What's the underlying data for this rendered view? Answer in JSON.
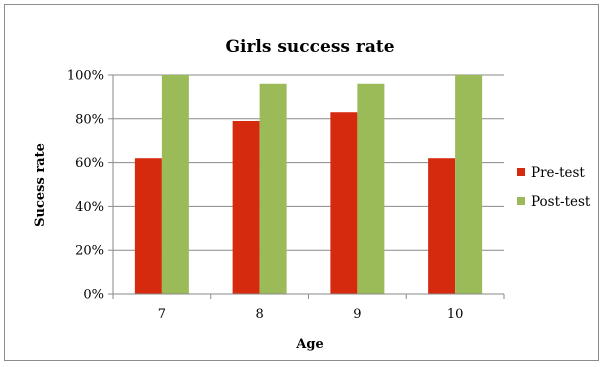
{
  "chart_data": {
    "type": "bar",
    "title": "Girls success rate",
    "xlabel": "Age",
    "ylabel": "Sucess rate",
    "categories": [
      "7",
      "8",
      "9",
      "10"
    ],
    "ylim": [
      0,
      100
    ],
    "yticks": [
      "0%",
      "20%",
      "40%",
      "60%",
      "80%",
      "100%"
    ],
    "grid": true,
    "legend_position": "right",
    "series": [
      {
        "name": "Pre-test",
        "color": "#d62a0e",
        "values": [
          62,
          79,
          83,
          62
        ]
      },
      {
        "name": "Post-test",
        "color": "#9bbb59",
        "values": [
          100,
          96,
          96,
          100
        ]
      }
    ]
  }
}
